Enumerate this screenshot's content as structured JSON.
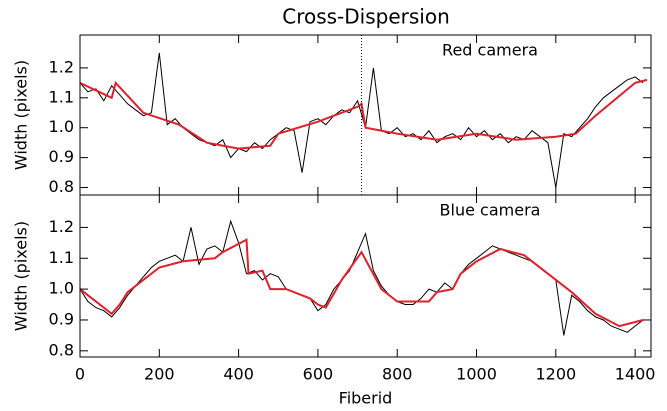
{
  "chart_data": [
    {
      "type": "line",
      "title": "Cross-Dispersion",
      "ylabel": "Width (pixels)",
      "annotation": "Red camera",
      "xlim": [
        0,
        1440
      ],
      "ylim": [
        0.775,
        1.31
      ],
      "yticks": [
        0.8,
        0.9,
        {
          "value": 1,
          "label": "1.0"
        },
        1.1,
        1.2
      ],
      "vline": 710,
      "series": [
        {
          "color": "#000000",
          "x": [
            0,
            20,
            40,
            60,
            80,
            100,
            120,
            140,
            160,
            180,
            200,
            220,
            240,
            260,
            280,
            300,
            320,
            340,
            360,
            380,
            400,
            420,
            440,
            460,
            480,
            500,
            520,
            540,
            560,
            580,
            600,
            620,
            640,
            660,
            680,
            700,
            720,
            740,
            760,
            780,
            800,
            820,
            840,
            860,
            880,
            900,
            920,
            940,
            960,
            980,
            1000,
            1020,
            1040,
            1060,
            1080,
            1100,
            1120,
            1140,
            1160,
            1180,
            1200,
            1220,
            1240,
            1260,
            1280,
            1300,
            1320,
            1340,
            1360,
            1380,
            1400,
            1420
          ],
          "values": [
            1.15,
            1.12,
            1.13,
            1.09,
            1.14,
            1.11,
            1.08,
            1.06,
            1.04,
            1.05,
            1.25,
            1.01,
            1.03,
            1.0,
            0.98,
            0.96,
            0.95,
            0.94,
            0.96,
            0.9,
            0.93,
            0.92,
            0.95,
            0.93,
            0.96,
            0.98,
            1.0,
            0.99,
            0.85,
            1.02,
            1.03,
            1.01,
            1.04,
            1.06,
            1.05,
            1.09,
            1.0,
            1.2,
            0.99,
            0.98,
            1.0,
            0.97,
            0.98,
            0.96,
            0.99,
            0.95,
            0.97,
            0.98,
            0.96,
            1.0,
            0.97,
            0.99,
            0.96,
            0.98,
            0.95,
            0.97,
            0.96,
            0.99,
            0.97,
            0.95,
            0.8,
            0.98,
            0.97,
            1.0,
            1.03,
            1.07,
            1.1,
            1.12,
            1.14,
            1.16,
            1.17,
            1.15
          ]
        },
        {
          "color": "#e0202a",
          "x": [
            0,
            80,
            90,
            160,
            250,
            320,
            400,
            480,
            500,
            600,
            700,
            710,
            720,
            800,
            900,
            1000,
            1100,
            1200,
            1250,
            1300,
            1400,
            1430
          ],
          "values": [
            1.15,
            1.1,
            1.15,
            1.05,
            1.01,
            0.95,
            0.93,
            0.94,
            0.98,
            1.02,
            1.07,
            1.08,
            1.0,
            0.98,
            0.96,
            0.98,
            0.96,
            0.97,
            0.98,
            1.04,
            1.15,
            1.16
          ]
        }
      ]
    },
    {
      "type": "line",
      "ylabel": "Width (pixels)",
      "xlabel": "Fiberid",
      "annotation": "Blue camera",
      "xlim": [
        0,
        1440
      ],
      "ylim": [
        0.78,
        1.305
      ],
      "xticks": [
        0,
        200,
        400,
        600,
        800,
        1000,
        1200,
        1400
      ],
      "yticks": [
        0.8,
        0.9,
        {
          "value": 1,
          "label": "1.0"
        },
        1.1,
        1.2
      ],
      "series": [
        {
          "color": "#000000",
          "x": [
            0,
            20,
            40,
            60,
            80,
            100,
            120,
            140,
            160,
            180,
            200,
            220,
            240,
            260,
            280,
            300,
            320,
            340,
            360,
            380,
            400,
            420,
            440,
            460,
            480,
            500,
            520,
            540,
            560,
            580,
            600,
            620,
            640,
            660,
            680,
            700,
            720,
            740,
            760,
            780,
            800,
            820,
            840,
            860,
            880,
            900,
            920,
            940,
            960,
            980,
            1000,
            1020,
            1040,
            1060,
            1080,
            1100,
            1120,
            1140,
            1160,
            1180,
            1200,
            1220,
            1240,
            1260,
            1280,
            1300,
            1320,
            1340,
            1360,
            1380,
            1400,
            1420
          ],
          "values": [
            1.0,
            0.96,
            0.94,
            0.93,
            0.91,
            0.94,
            0.98,
            1.01,
            1.04,
            1.07,
            1.09,
            1.1,
            1.11,
            1.09,
            1.2,
            1.08,
            1.13,
            1.14,
            1.12,
            1.22,
            1.15,
            1.05,
            1.06,
            1.03,
            1.05,
            1.04,
            1.0,
            0.99,
            0.98,
            0.97,
            0.93,
            0.95,
            1.0,
            1.03,
            1.06,
            1.12,
            1.18,
            1.06,
            1.01,
            0.98,
            0.96,
            0.95,
            0.95,
            0.97,
            1.0,
            0.99,
            1.02,
            1.0,
            1.05,
            1.08,
            1.1,
            1.12,
            1.14,
            1.13,
            1.12,
            1.11,
            1.1,
            1.09,
            1.07,
            1.05,
            1.03,
            0.85,
            0.98,
            0.96,
            0.93,
            0.91,
            0.9,
            0.88,
            0.87,
            0.86,
            0.88,
            0.9
          ]
        },
        {
          "color": "#e0202a",
          "x": [
            0,
            80,
            100,
            120,
            200,
            260,
            340,
            360,
            420,
            425,
            460,
            480,
            520,
            580,
            600,
            620,
            660,
            710,
            760,
            800,
            880,
            900,
            940,
            960,
            1000,
            1060,
            1120,
            1180,
            1240,
            1300,
            1360,
            1420
          ],
          "values": [
            1.0,
            0.92,
            0.95,
            0.99,
            1.07,
            1.09,
            1.1,
            1.12,
            1.16,
            1.05,
            1.06,
            1.0,
            1.0,
            0.97,
            0.95,
            0.94,
            1.03,
            1.12,
            1.0,
            0.96,
            0.96,
            0.99,
            1.0,
            1.05,
            1.09,
            1.13,
            1.11,
            1.05,
            0.99,
            0.92,
            0.88,
            0.9
          ]
        }
      ]
    }
  ]
}
